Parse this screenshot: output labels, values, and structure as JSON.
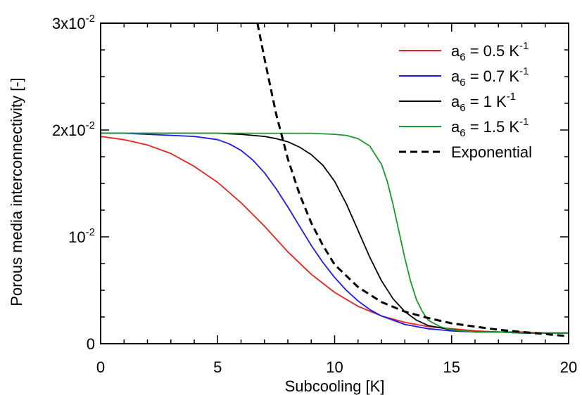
{
  "chart_data": {
    "type": "line",
    "title": "",
    "xlabel": "Subcooling [K]",
    "ylabel": "Porous media interconnectivity [-]",
    "xlim": [
      0,
      20
    ],
    "ylim": [
      0,
      0.03
    ],
    "grid": false,
    "legend_position": "top-right",
    "x_ticks": [
      {
        "value": 0,
        "label": "0"
      },
      {
        "value": 5,
        "label": "5"
      },
      {
        "value": 10,
        "label": "10"
      },
      {
        "value": 15,
        "label": "15"
      },
      {
        "value": 20,
        "label": "20"
      }
    ],
    "y_ticks": [
      {
        "value": 0,
        "base": "0",
        "exp": ""
      },
      {
        "value": 0.01,
        "base": "10",
        "exp": "-2"
      },
      {
        "value": 0.02,
        "base": "2x10",
        "exp": "-2"
      },
      {
        "value": 0.03,
        "base": "3x10",
        "exp": "-2"
      }
    ],
    "series": [
      {
        "name": "a6 = 0.5 K-1",
        "label_parts": {
          "pre": "a",
          "sub": "6",
          "mid": " = 0.5 K",
          "sup": "-1"
        },
        "color": "#e8231f",
        "dash": "solid",
        "x": [
          0,
          1,
          2,
          3,
          4,
          5,
          6,
          7,
          8,
          9,
          10,
          11,
          12,
          13,
          14,
          15,
          16,
          17,
          18,
          19,
          20
        ],
        "y": [
          0.0194,
          0.0191,
          0.0186,
          0.0178,
          0.0166,
          0.0151,
          0.0132,
          0.011,
          0.0086,
          0.0065,
          0.0048,
          0.0035,
          0.0026,
          0.002,
          0.0016,
          0.0014,
          0.0012,
          0.0011,
          0.0011,
          0.001,
          0.001
        ]
      },
      {
        "name": "a6 = 0.7 K-1",
        "label_parts": {
          "pre": "a",
          "sub": "6",
          "mid": " = 0.7 K",
          "sup": "-1"
        },
        "color": "#1a1ae8",
        "dash": "solid",
        "x": [
          0,
          1,
          2,
          3,
          4,
          5,
          5.5,
          6,
          6.5,
          7,
          7.5,
          8,
          8.5,
          9,
          9.5,
          10,
          10.5,
          11,
          11.5,
          12,
          13,
          14,
          15,
          16,
          17,
          18,
          20
        ],
        "y": [
          0.0197,
          0.0197,
          0.0196,
          0.0195,
          0.0194,
          0.0191,
          0.0187,
          0.0181,
          0.0172,
          0.016,
          0.0145,
          0.0128,
          0.011,
          0.0092,
          0.0076,
          0.0062,
          0.005,
          0.004,
          0.0032,
          0.0026,
          0.0018,
          0.0014,
          0.0012,
          0.0011,
          0.0011,
          0.001,
          0.001
        ]
      },
      {
        "name": "a6 = 1 K-1",
        "label_parts": {
          "pre": "a",
          "sub": "6",
          "mid": " = 1 K",
          "sup": "-1"
        },
        "color": "#000000",
        "dash": "solid",
        "x": [
          0,
          2,
          4,
          5,
          6,
          6.5,
          7,
          7.5,
          8,
          8.5,
          9,
          9.5,
          10,
          10.5,
          11,
          11.5,
          12,
          12.5,
          13,
          13.5,
          14,
          15,
          16,
          17,
          18,
          20
        ],
        "y": [
          0.0197,
          0.0197,
          0.0197,
          0.0197,
          0.0196,
          0.0195,
          0.0194,
          0.0192,
          0.0189,
          0.0184,
          0.0177,
          0.0167,
          0.0152,
          0.0131,
          0.0106,
          0.0081,
          0.0059,
          0.0042,
          0.003,
          0.0022,
          0.0017,
          0.0013,
          0.0011,
          0.0011,
          0.001,
          0.001
        ]
      },
      {
        "name": "a6 = 1.5 K-1",
        "label_parts": {
          "pre": "a",
          "sub": "6",
          "mid": " = 1.5 K",
          "sup": "-1"
        },
        "color": "#1a9a2e",
        "dash": "solid",
        "x": [
          0,
          4,
          6,
          8,
          9,
          10,
          10.5,
          11,
          11.5,
          12,
          12.25,
          12.5,
          12.75,
          13,
          13.25,
          13.5,
          13.75,
          14,
          14.5,
          15,
          16,
          17,
          18,
          20
        ],
        "y": [
          0.0197,
          0.0197,
          0.0197,
          0.0197,
          0.0197,
          0.0196,
          0.0195,
          0.0192,
          0.0185,
          0.0168,
          0.0152,
          0.013,
          0.0105,
          0.008,
          0.0058,
          0.0041,
          0.003,
          0.0022,
          0.0016,
          0.0013,
          0.0011,
          0.0011,
          0.001,
          0.001
        ]
      },
      {
        "name": "Exponential",
        "label_parts": {
          "pre": "Exponential",
          "sub": "",
          "mid": "",
          "sup": ""
        },
        "color": "#000000",
        "dash": "dashed",
        "x": [
          6.7,
          7,
          7.5,
          8,
          8.5,
          9,
          9.5,
          10,
          11,
          12,
          13,
          14,
          15,
          16,
          17,
          18,
          19,
          20
        ],
        "y": [
          0.03,
          0.0267,
          0.0215,
          0.0173,
          0.014,
          0.0113,
          0.0092,
          0.0074,
          0.0053,
          0.0039,
          0.003,
          0.0024,
          0.0019,
          0.0016,
          0.0013,
          0.0011,
          0.0009,
          0.0007
        ]
      }
    ]
  }
}
